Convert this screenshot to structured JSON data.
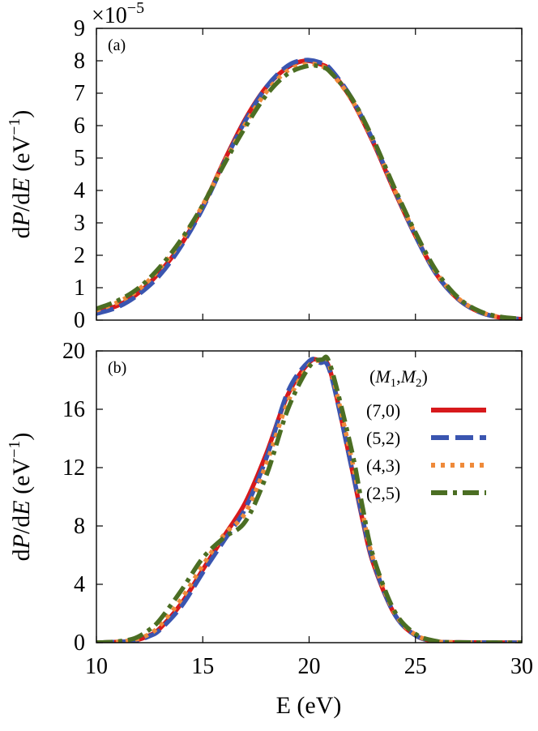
{
  "chart_data": [
    {
      "type": "line",
      "panel_label": "(a)",
      "scale_text": "×10",
      "scale_exponent": "−5",
      "ylabel": {
        "prefix": "d",
        "var1": "P",
        "mid": "/d",
        "var2": "E",
        "unit_open": " (eV",
        "unit_exp": "−1",
        "unit_close": ")"
      },
      "xlim": [
        10,
        30
      ],
      "ylim": [
        0,
        9
      ],
      "yticks": [
        "0",
        "1",
        "2",
        "3",
        "4",
        "5",
        "6",
        "7",
        "8",
        "9"
      ],
      "ytick_values": [
        0,
        1,
        2,
        3,
        4,
        5,
        6,
        7,
        8,
        9
      ],
      "series": [
        {
          "name": "(7,0)",
          "color": "#d7191c",
          "style": "solid",
          "x": [
            10,
            11,
            12,
            13,
            14,
            15,
            16,
            17,
            18,
            19,
            19.8,
            20.5,
            21,
            22,
            23,
            24,
            25,
            26,
            27,
            28,
            29,
            30
          ],
          "values": [
            0.25,
            0.45,
            0.85,
            1.5,
            2.35,
            3.5,
            4.9,
            6.2,
            7.2,
            7.8,
            8.0,
            7.9,
            7.7,
            6.8,
            5.5,
            4.0,
            2.6,
            1.4,
            0.65,
            0.25,
            0.08,
            0.03
          ]
        },
        {
          "name": "(5,2)",
          "color": "#3a55b0",
          "style": "dashed",
          "x": [
            10,
            11,
            12,
            13,
            14,
            15,
            16,
            17,
            18,
            19,
            19.8,
            20.5,
            21,
            22,
            23,
            24,
            25,
            26,
            27,
            28,
            29,
            30
          ],
          "values": [
            0.2,
            0.4,
            0.8,
            1.4,
            2.3,
            3.45,
            4.85,
            6.15,
            7.2,
            7.85,
            8.02,
            7.95,
            7.75,
            6.85,
            5.55,
            4.05,
            2.6,
            1.4,
            0.65,
            0.25,
            0.08,
            0.03
          ]
        },
        {
          "name": "(4,3)",
          "color": "#ef8a3a",
          "style": "dotted",
          "x": [
            10,
            11,
            12,
            13,
            14,
            15,
            16,
            17,
            18,
            19,
            19.9,
            20.5,
            21,
            22,
            23,
            24,
            25,
            26,
            27,
            28,
            29,
            30
          ],
          "values": [
            0.3,
            0.55,
            0.95,
            1.6,
            2.45,
            3.55,
            4.85,
            6.05,
            7.05,
            7.7,
            7.9,
            7.85,
            7.65,
            6.8,
            5.55,
            4.05,
            2.65,
            1.45,
            0.68,
            0.27,
            0.09,
            0.03
          ]
        },
        {
          "name": "(2,5)",
          "color": "#4b6e23",
          "style": "dashdot",
          "x": [
            10,
            11,
            12,
            13,
            14,
            15,
            16,
            17,
            18,
            19,
            20,
            20.6,
            21,
            22,
            23,
            24,
            25,
            26,
            27,
            28,
            29,
            30
          ],
          "values": [
            0.35,
            0.6,
            1.0,
            1.65,
            2.5,
            3.55,
            4.8,
            5.95,
            6.95,
            7.6,
            7.85,
            7.8,
            7.65,
            6.85,
            5.6,
            4.1,
            2.7,
            1.5,
            0.7,
            0.28,
            0.1,
            0.04
          ]
        }
      ]
    },
    {
      "type": "line",
      "panel_label": "(b)",
      "xlabel": "E (eV)",
      "ylabel": {
        "prefix": "d",
        "var1": "P",
        "mid": "/d",
        "var2": "E",
        "unit_open": " (eV",
        "unit_exp": "−1",
        "unit_close": ")"
      },
      "xlim": [
        10,
        30
      ],
      "ylim": [
        0,
        20
      ],
      "yticks": [
        "0",
        "4",
        "8",
        "12",
        "16",
        "20"
      ],
      "ytick_values": [
        0,
        4,
        8,
        12,
        16,
        20
      ],
      "xticks": [
        "10",
        "15",
        "20",
        "25",
        "30"
      ],
      "xtick_values": [
        10,
        15,
        20,
        25,
        30
      ],
      "legend": {
        "title_open": "(",
        "title_m1": "M",
        "title_sub1": "1",
        "title_sep": ",",
        "title_m2": "M",
        "title_sub2": "2",
        "title_close": ")",
        "position": "top-right"
      },
      "series": [
        {
          "name": "(7,0)",
          "color": "#d7191c",
          "style": "solid",
          "x": [
            10,
            11,
            11.8,
            12.5,
            13,
            14,
            15,
            16,
            17,
            18,
            19,
            20,
            20.5,
            21,
            22,
            22.5,
            23,
            24,
            25,
            26,
            27,
            30
          ],
          "values": [
            0,
            0.05,
            0.15,
            0.5,
            1.0,
            2.7,
            5.0,
            7.3,
            9.6,
            13.0,
            17.0,
            19.2,
            19.3,
            18.6,
            12.0,
            8.5,
            5.5,
            2.0,
            0.5,
            0.08,
            0.02,
            0
          ]
        },
        {
          "name": "(5,2)",
          "color": "#3a55b0",
          "style": "dashed",
          "x": [
            10,
            11,
            11.8,
            12.5,
            13,
            14,
            15,
            16,
            17,
            18,
            19,
            20,
            20.5,
            21,
            22,
            22.5,
            23,
            24,
            25,
            26,
            27,
            30
          ],
          "values": [
            0,
            0.05,
            0.12,
            0.45,
            0.9,
            2.5,
            4.8,
            7.0,
            9.2,
            12.7,
            17.2,
            19.3,
            19.2,
            18.5,
            12.0,
            8.6,
            5.6,
            2.0,
            0.5,
            0.08,
            0.02,
            0
          ]
        },
        {
          "name": "(4,3)",
          "color": "#ef8a3a",
          "style": "dotted",
          "x": [
            10,
            11,
            11.8,
            12.5,
            13,
            14,
            15,
            16,
            17,
            18,
            19,
            20,
            20.6,
            21,
            22,
            22.5,
            23,
            24,
            25,
            26,
            27,
            30
          ],
          "values": [
            0,
            0.06,
            0.2,
            0.6,
            1.2,
            3.0,
            5.3,
            7.4,
            8.9,
            12.3,
            16.5,
            19.0,
            19.3,
            18.8,
            12.6,
            9.0,
            5.8,
            2.1,
            0.55,
            0.09,
            0.02,
            0
          ]
        },
        {
          "name": "(2,5)",
          "color": "#4b6e23",
          "style": "dashdot",
          "x": [
            10,
            11,
            11.8,
            12.5,
            13,
            14,
            15,
            16,
            17,
            18,
            19,
            20,
            20.6,
            21,
            22,
            22.5,
            23,
            24,
            25,
            26,
            27,
            30
          ],
          "values": [
            0,
            0.08,
            0.3,
            0.9,
            1.6,
            3.6,
            5.8,
            7.2,
            8.3,
            11.5,
            16.0,
            18.9,
            19.4,
            19.0,
            13.2,
            9.4,
            6.0,
            2.2,
            0.6,
            0.1,
            0.02,
            0
          ]
        }
      ]
    }
  ]
}
